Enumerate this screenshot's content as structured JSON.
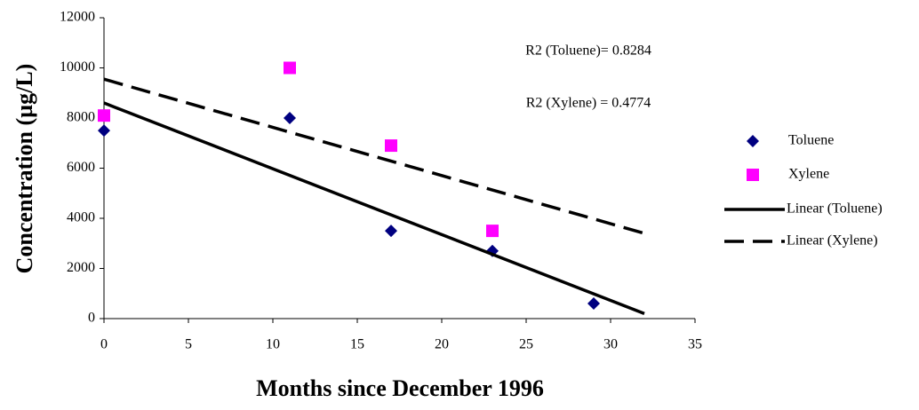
{
  "chart_data": {
    "type": "scatter",
    "x_label": "Months since December 1996",
    "y_label": "Concentration (µg/L)",
    "annotations": [
      "R2 (Toluene)= 0.8284",
      "R2 (Xylene) = 0.4774"
    ],
    "xlim": [
      0,
      35
    ],
    "xticks": [
      0,
      5,
      10,
      15,
      20,
      25,
      30,
      35
    ],
    "ylim": [
      0,
      12000
    ],
    "yticks": [
      0,
      2000,
      4000,
      6000,
      8000,
      10000,
      12000
    ],
    "grid": false,
    "legend": "right",
    "series": [
      {
        "name": "Toluene",
        "color": "#000080",
        "marker": "diamond",
        "x": [
          0,
          11,
          17,
          23,
          29
        ],
        "values": [
          7500,
          8000,
          3500,
          2700,
          600
        ]
      },
      {
        "name": "Xylene",
        "color": "#ff00ff",
        "marker": "square",
        "x": [
          0,
          11,
          17,
          23
        ],
        "values": [
          8100,
          10000,
          6900,
          3500
        ]
      },
      {
        "name": "Linear (Toluene)",
        "color": "#000000",
        "line": "solid",
        "x": [
          0,
          32
        ],
        "values": [
          8600,
          200
        ]
      },
      {
        "name": "Linear (Xylene)",
        "color": "#000000",
        "line": "dashed",
        "x": [
          0,
          32
        ],
        "values": [
          9550,
          3400
        ]
      }
    ]
  }
}
